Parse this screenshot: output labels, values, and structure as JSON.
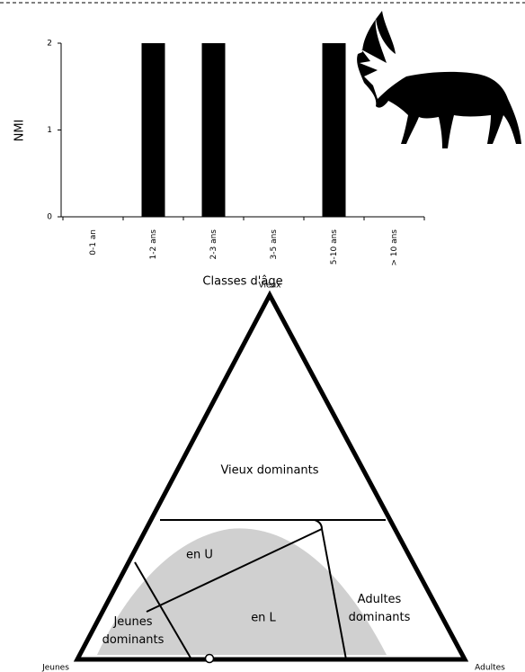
{
  "chart_data": {
    "type": "bar",
    "y_label": "NMI",
    "x_label": "Classes d'âge",
    "categories": [
      "0-1 an",
      "1-2 ans",
      "2-3 ans",
      "3-5 ans",
      "5-10 ans",
      "> 10 ans"
    ],
    "values": [
      0,
      2,
      2,
      0,
      2,
      0
    ],
    "color": "#000000",
    "ylim": [
      0,
      2
    ],
    "yticks": [
      0,
      1,
      2
    ]
  },
  "diagram": {
    "vertices": {
      "top": "Vieux",
      "left": "Jeunes",
      "right": "Adultes"
    },
    "regions": [
      "Vieux dominants",
      "en U",
      "en L",
      "Adultes dominants",
      "Jeunes dominants"
    ]
  }
}
